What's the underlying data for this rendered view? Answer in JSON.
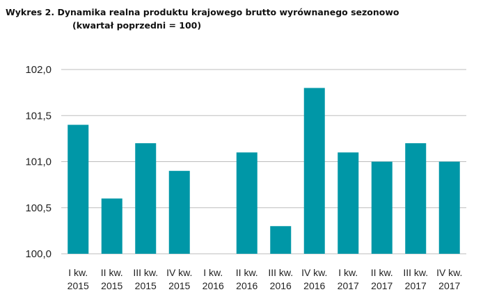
{
  "chart_data": {
    "type": "bar",
    "title": "Wykres 2. Dynamika realna produktu krajowego brutto wyrównanego sezonowo",
    "subtitle": "(kwartał poprzedni = 100)",
    "categories": [
      [
        "I kw.",
        "2015"
      ],
      [
        "II kw.",
        "2015"
      ],
      [
        "III kw.",
        "2015"
      ],
      [
        "IV kw.",
        "2015"
      ],
      [
        "I kw.",
        "2016"
      ],
      [
        "II kw.",
        "2016"
      ],
      [
        "III kw.",
        "2016"
      ],
      [
        "IV kw.",
        "2016"
      ],
      [
        "I kw.",
        "2017"
      ],
      [
        "II kw.",
        "2017"
      ],
      [
        "III kw.",
        "2017"
      ],
      [
        "IV kw.",
        "2017"
      ]
    ],
    "values": [
      101.4,
      100.6,
      101.2,
      100.9,
      100.0,
      101.1,
      100.3,
      101.8,
      101.1,
      101.0,
      101.2,
      101.0
    ],
    "ylim": [
      100.0,
      102.0
    ],
    "yticks": [
      "100,0",
      "100,5",
      "101,0",
      "101,5",
      "102,0"
    ],
    "ytick_values": [
      100.0,
      100.5,
      101.0,
      101.5,
      102.0
    ],
    "grid": true,
    "bar_color": "#0097a7",
    "xlabel": "",
    "ylabel": ""
  }
}
